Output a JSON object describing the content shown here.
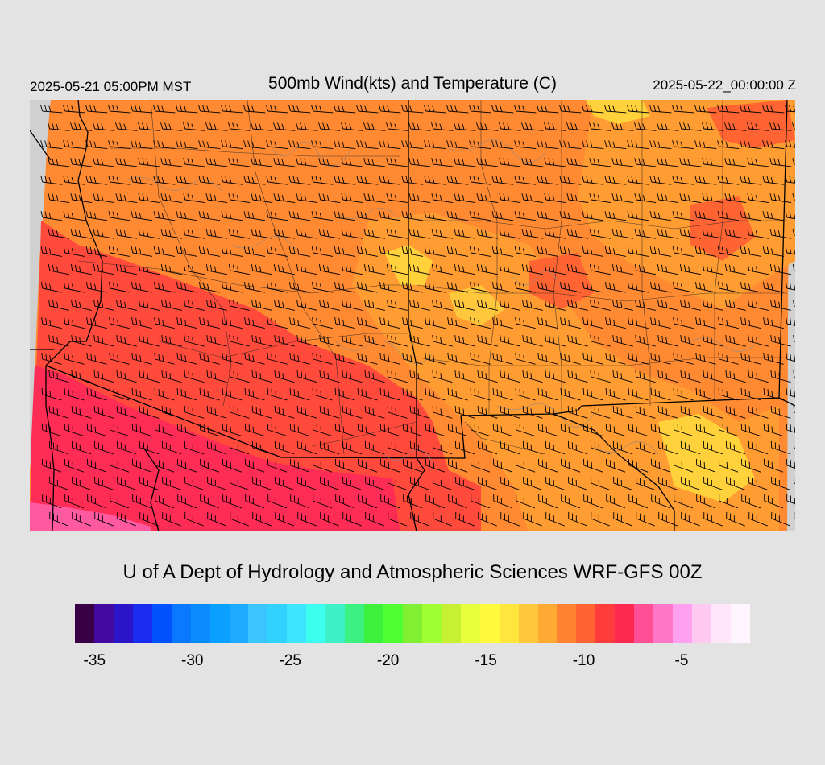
{
  "header": {
    "valid_local": "2025-05-21 05:00PM MST",
    "title": "500mb Wind(kts) and Temperature (C)",
    "valid_utc": "2025-05-22_00:00:00 Z"
  },
  "footer": {
    "credit": "U of A Dept of Hydrology and Atmospheric Sciences WRF-GFS 00Z"
  },
  "colorbar": {
    "colors": [
      "#3a0046",
      "#430aa0",
      "#2a16c8",
      "#1a2cf0",
      "#0052ff",
      "#0a78ff",
      "#0a8cff",
      "#0aa0ff",
      "#1eaaff",
      "#3cc6ff",
      "#32d2ff",
      "#3ce6ff",
      "#3cfff0",
      "#3cf0c8",
      "#3cf082",
      "#3cf03c",
      "#50ff32",
      "#82f032",
      "#a0ff32",
      "#c8f032",
      "#e6ff3c",
      "#fffa3c",
      "#ffe63c",
      "#ffc83c",
      "#ffaa32",
      "#ff8232",
      "#ff6432",
      "#ff3c3c",
      "#ff2850",
      "#ff5096",
      "#ff78c8",
      "#ffa0f0",
      "#ffc8f0",
      "#ffe6fa",
      "#fff5ff"
    ],
    "tick_labels": [
      {
        "label": "-35",
        "value": -35
      },
      {
        "label": "-30",
        "value": -30
      },
      {
        "label": "-25",
        "value": -25
      },
      {
        "label": "-20",
        "value": -20
      },
      {
        "label": "-15",
        "value": -15
      },
      {
        "label": "-10",
        "value": -10
      },
      {
        "label": "-5",
        "value": -5
      }
    ],
    "min": -36,
    "max": -1.5
  },
  "map": {
    "field_colors": {
      "coldest": "#ff5aa0",
      "cold": "#ff2d55",
      "mid": "#ff4a3c",
      "warm": "#ff7a32",
      "warmer": "#ff9c32",
      "warmest": "#ffb432",
      "yellow": "#ffd23c"
    },
    "border_color": "#000000",
    "barb_color": "#000000",
    "contour_color": "#888888"
  }
}
